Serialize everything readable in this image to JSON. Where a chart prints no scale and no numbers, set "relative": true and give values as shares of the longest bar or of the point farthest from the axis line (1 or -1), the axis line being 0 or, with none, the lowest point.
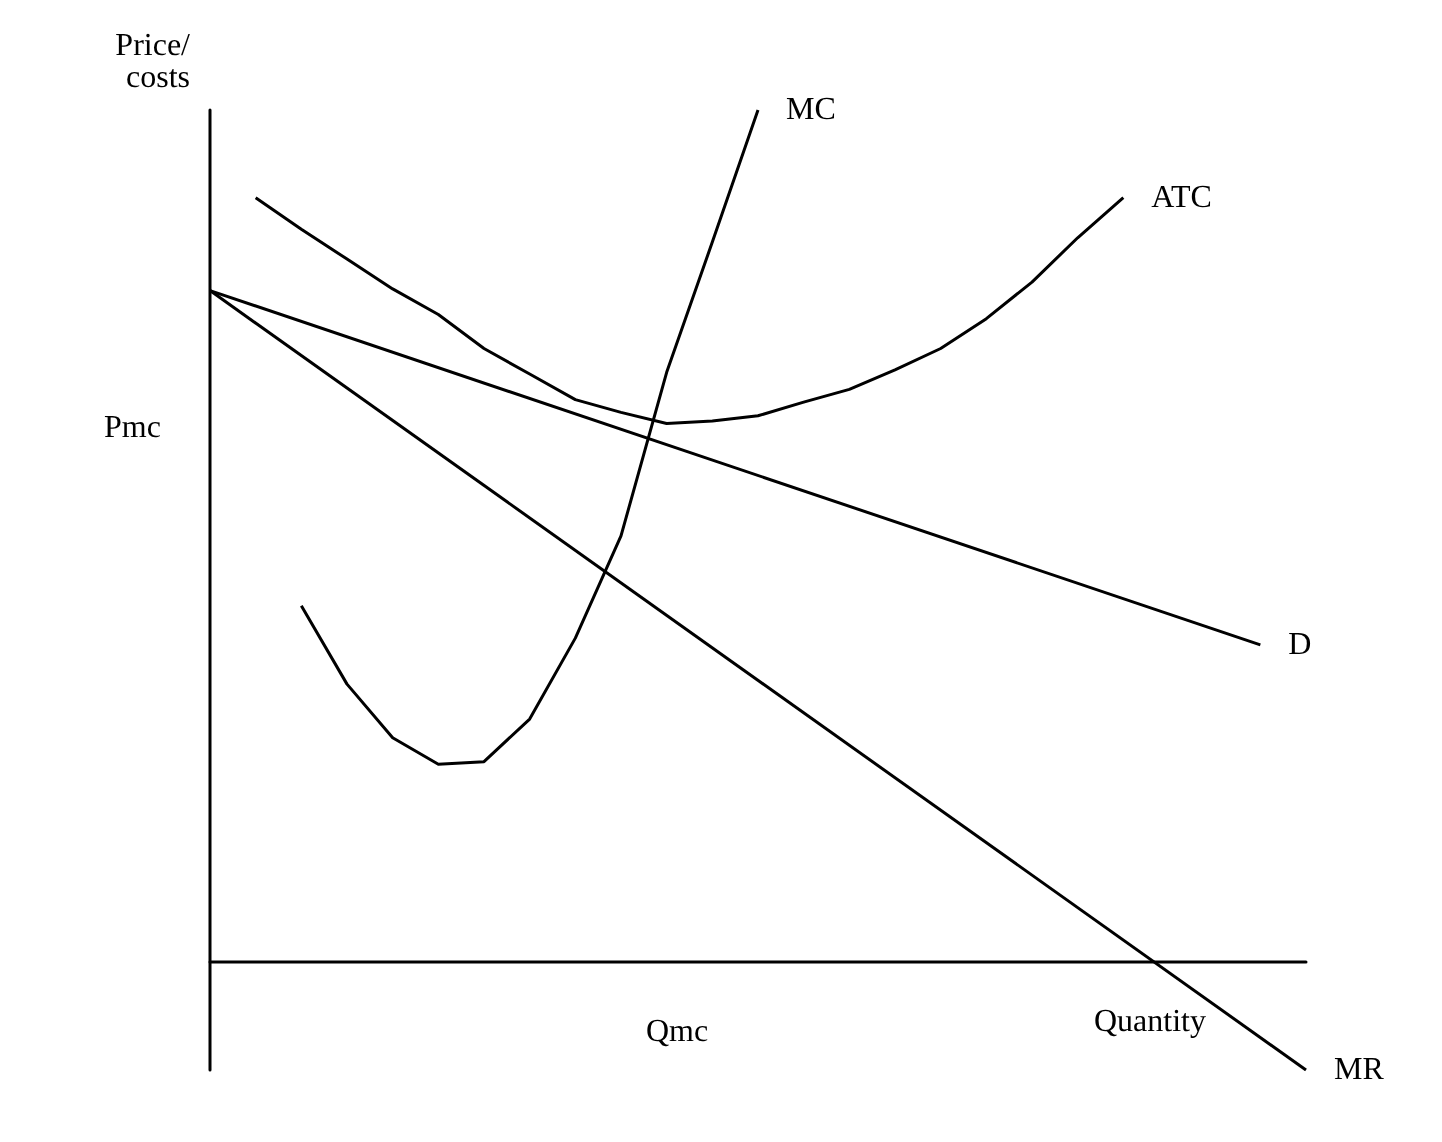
{
  "chart_data": {
    "type": "line",
    "relative": true,
    "ylabel": "Price/\ncosts",
    "xlabel": "Quantity",
    "grid": false,
    "legend": false,
    "marker": "none",
    "line_style": "solid",
    "annotations": [
      "Pmc",
      "Qmc"
    ],
    "categories": [
      null,
      null,
      null,
      null,
      null,
      null,
      null,
      null,
      null,
      null,
      null,
      null,
      null,
      null,
      null,
      null,
      null,
      null,
      null,
      null,
      null,
      null,
      null,
      null,
      null
    ],
    "series": [
      {
        "name": "MC",
        "color": "#000000",
        "values": [
          null,
          null,
          0.418,
          0.326,
          0.263,
          0.232,
          0.235,
          0.285,
          0.38,
          0.5,
          0.692,
          0.845,
          1,
          null,
          null,
          null,
          null,
          null,
          null,
          null,
          null,
          null,
          null,
          null,
          null
        ]
      },
      {
        "name": "ATC",
        "color": "#000000",
        "values": [
          null,
          0.897,
          0.86,
          0.825,
          0.79,
          0.76,
          0.72,
          0.69,
          0.66,
          0.645,
          0.632,
          0.635,
          0.641,
          0.657,
          0.672,
          0.695,
          0.72,
          0.755,
          0.798,
          0.85,
          0.897,
          null,
          null,
          null,
          null
        ]
      },
      {
        "name": "D",
        "color": "#000000",
        "values": [
          0.788,
          null,
          null,
          null,
          null,
          null,
          null,
          null,
          null,
          null,
          null,
          null,
          null,
          null,
          null,
          null,
          null,
          null,
          null,
          null,
          null,
          null,
          null,
          0.372,
          null
        ]
      },
      {
        "name": "MR",
        "color": "#000000",
        "values": [
          0.788,
          null,
          null,
          null,
          null,
          null,
          null,
          null,
          null,
          null,
          null,
          null,
          null,
          null,
          null,
          null,
          null,
          null,
          null,
          null,
          null,
          null,
          null,
          null,
          -0.127
        ]
      }
    ]
  }
}
